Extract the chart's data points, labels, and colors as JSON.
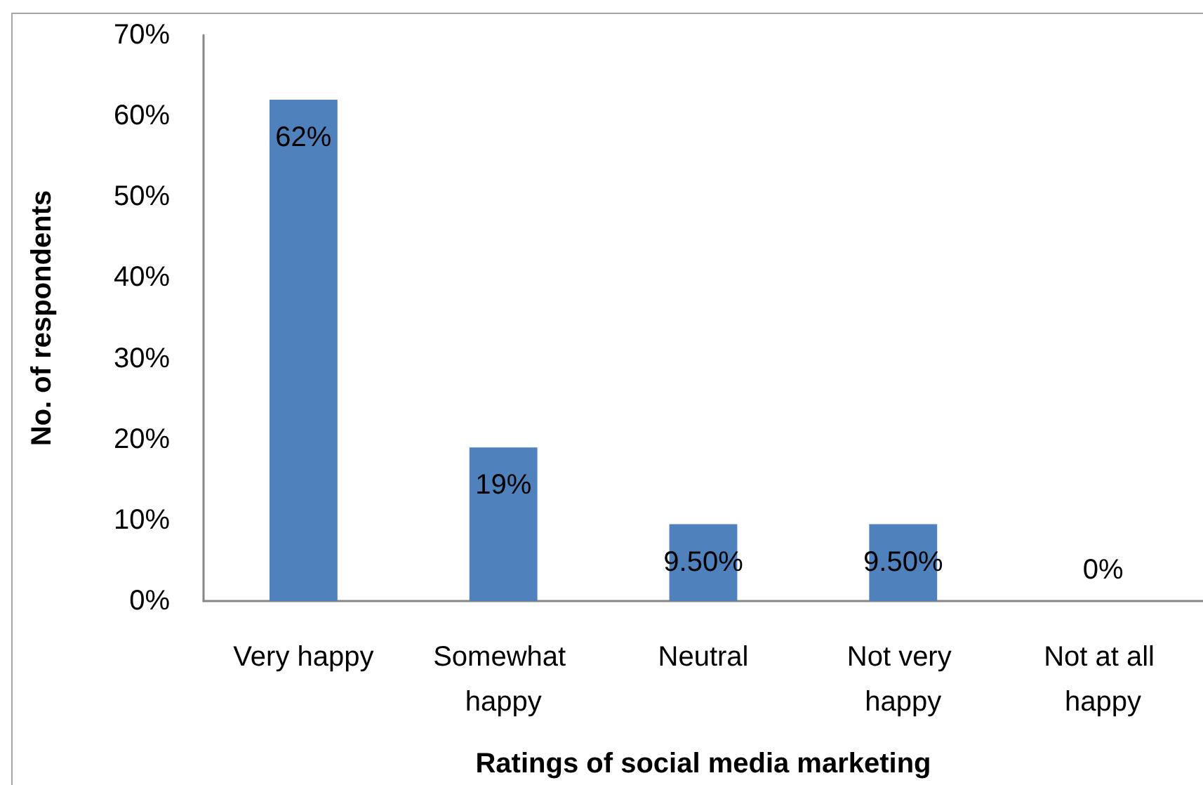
{
  "chart_data": {
    "type": "bar",
    "xlabel": "Ratings of social media marketing",
    "ylabel": "No. of respondents",
    "categories": [
      "Very happy",
      "Somewhat happy",
      "Neutral",
      "Not very happy",
      "Not at all happy"
    ],
    "values": [
      62,
      19,
      9.5,
      9.5,
      0
    ],
    "color": "#4f81bd",
    "value_labels": [
      "62%",
      "19%",
      "9.50%",
      "9.50%",
      "0%"
    ],
    "ylim": [
      0,
      70
    ],
    "yticks": [
      {
        "value": 0,
        "label": "0%"
      },
      {
        "value": 10,
        "label": "10%"
      },
      {
        "value": 20,
        "label": "20%"
      },
      {
        "value": 30,
        "label": "30%"
      },
      {
        "value": 40,
        "label": "40%"
      },
      {
        "value": 50,
        "label": "50%"
      },
      {
        "value": 60,
        "label": "60%"
      },
      {
        "value": 70,
        "label": "70%"
      }
    ],
    "grid": false
  }
}
